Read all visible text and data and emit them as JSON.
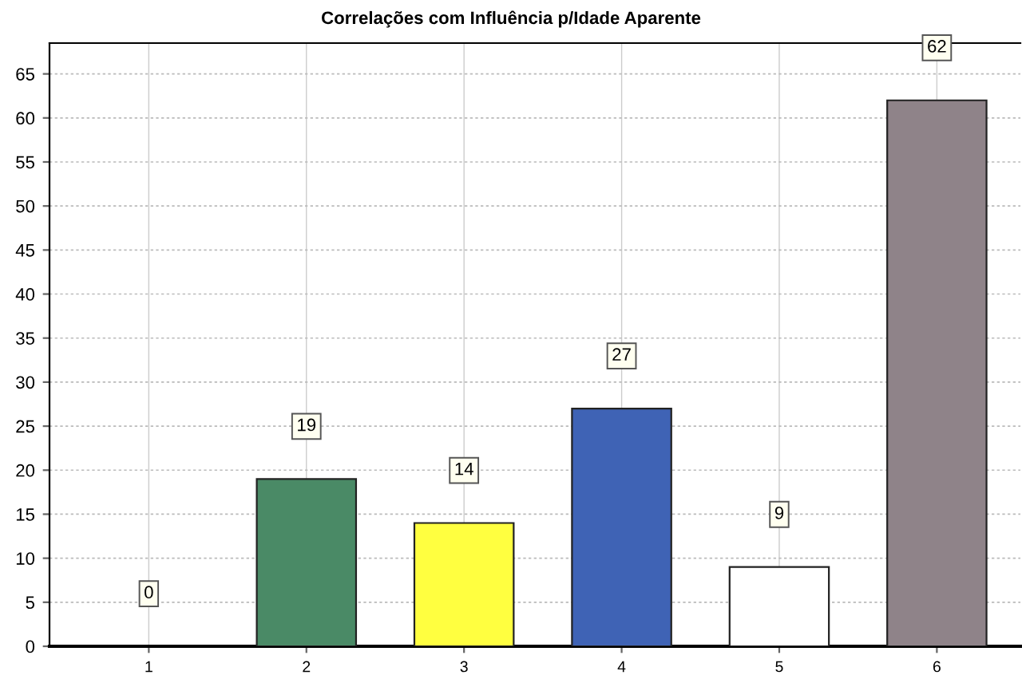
{
  "chart_data": {
    "type": "bar",
    "title": "Correlações com Influência p/Idade Aparente",
    "categories": [
      "1",
      "2",
      "3",
      "4",
      "5",
      "6"
    ],
    "values": [
      0,
      19,
      14,
      27,
      9,
      62
    ],
    "colors": [
      null,
      "#4a8a66",
      "#ffff40",
      "#3f63b5",
      "#ffffff",
      "#8f8389"
    ],
    "ylim": [
      0,
      68.5
    ],
    "yticks": [
      0,
      5,
      10,
      15,
      20,
      25,
      30,
      35,
      40,
      45,
      50,
      55,
      60,
      65
    ],
    "grid": true,
    "data_labels": true
  }
}
